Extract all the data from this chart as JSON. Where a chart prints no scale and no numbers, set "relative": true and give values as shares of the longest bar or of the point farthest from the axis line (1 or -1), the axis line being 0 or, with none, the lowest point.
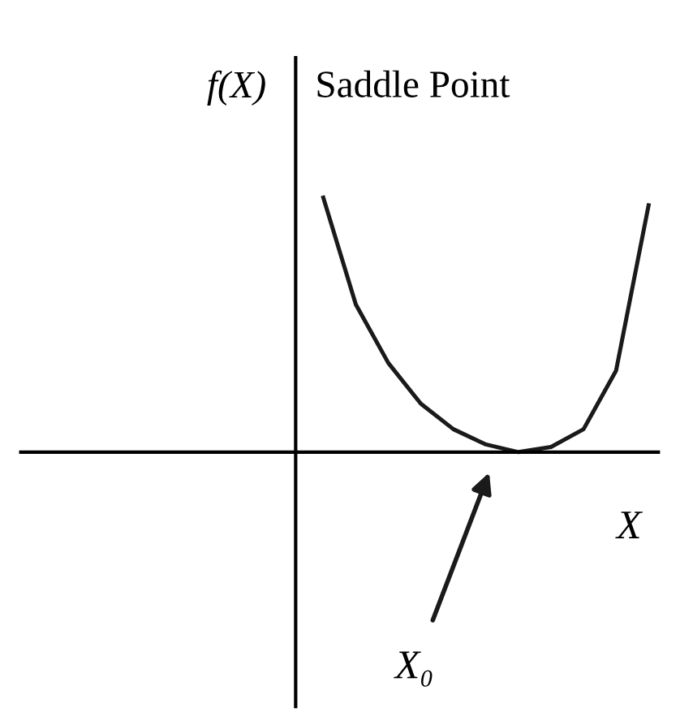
{
  "chart_data": {
    "type": "line",
    "relative": true,
    "title": "Saddle Point",
    "ylabel": "f(X)",
    "xlabel": "X",
    "categories": [
      null,
      null,
      null,
      null,
      null,
      null,
      null,
      null,
      null,
      null,
      null,
      null,
      null,
      null,
      null,
      null,
      null,
      null,
      null,
      null
    ],
    "series": [
      {
        "color": "#1a1a1a",
        "values": [
          null,
          null,
          null,
          null,
          null,
          null,
          null,
          null,
          null,
          1.0,
          0.58,
          0.35,
          0.19,
          0.09,
          0.03,
          0.0,
          0.02,
          0.09,
          0.32,
          0.97
        ]
      }
    ],
    "annotations": [
      "X₀"
    ],
    "grid": false,
    "legend": false,
    "marker": "none",
    "line_style": "solid"
  }
}
